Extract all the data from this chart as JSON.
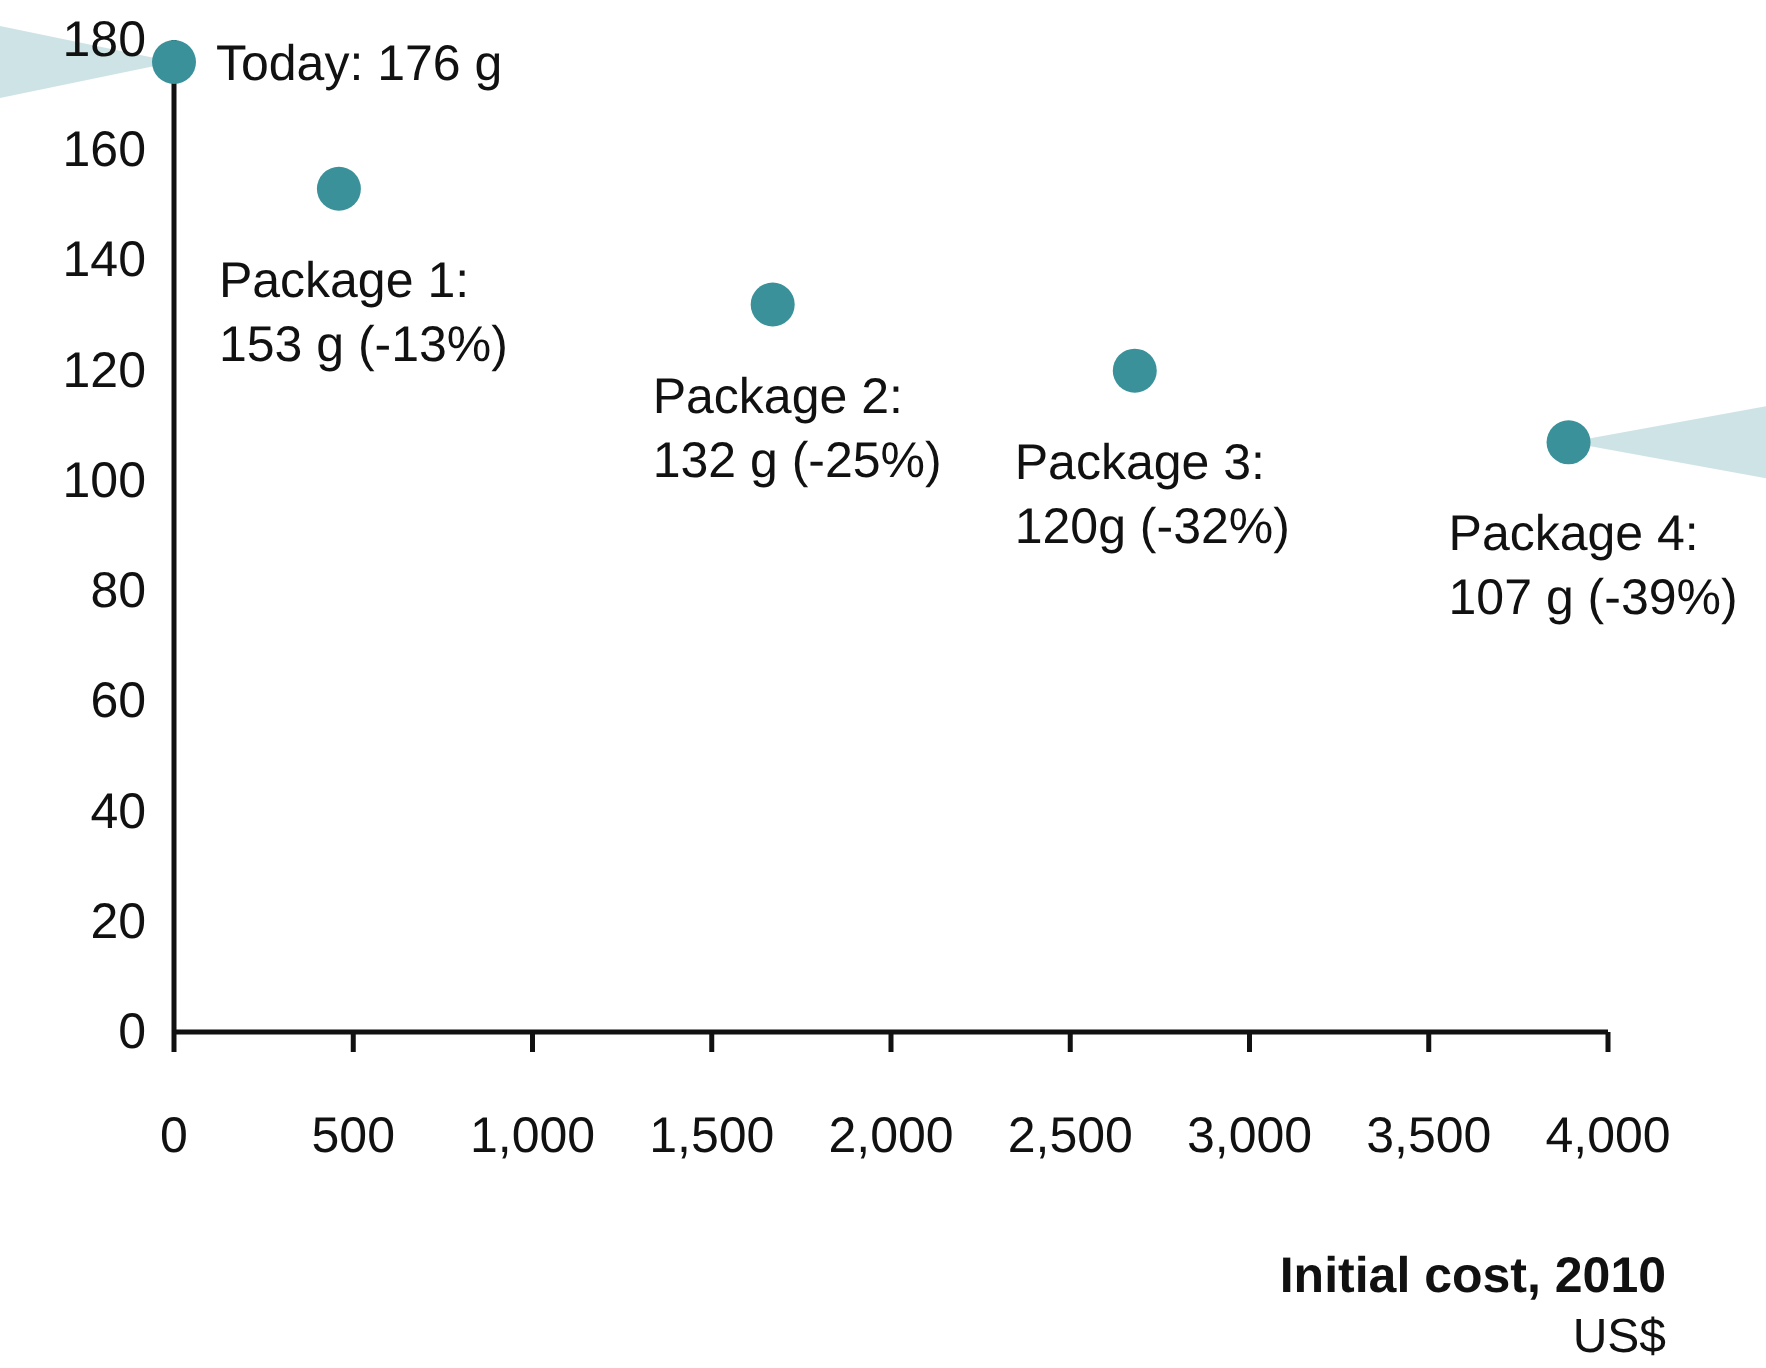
{
  "chart_data": {
    "type": "scatter",
    "xlabel": "Initial cost, 2010",
    "x": [
      0,
      460,
      1670,
      2680,
      3890
    ],
    "series": [
      {
        "color": "#3a9199",
        "values": [
          176,
          153,
          132,
          120,
          107
        ]
      }
    ],
    "xlim": [
      0,
      4000
    ],
    "xticks": [
      0,
      500,
      {
        "value": 1000,
        "label": "1,000"
      },
      {
        "value": 1500,
        "label": "1,500"
      },
      {
        "value": 2000,
        "label": "2,000"
      },
      {
        "value": 2500,
        "label": "2,500"
      },
      {
        "value": 3000,
        "label": "3,000"
      },
      {
        "value": 3500,
        "label": "3,500"
      },
      {
        "value": 4000,
        "label": "4,000"
      }
    ],
    "ylim": [
      0,
      180
    ],
    "yticks": [
      0,
      20,
      40,
      60,
      80,
      100,
      120,
      140,
      160,
      180
    ],
    "grid": false,
    "marker": "circle",
    "annotations": [
      {
        "text": "Today: 176 g",
        "x": 0,
        "y": 176
      },
      {
        "text": "Package 1:\n153 g (-13%)",
        "x": 460,
        "y": 153
      },
      {
        "text": "Package 2:\n132 g (-25%)",
        "x": 1670,
        "y": 132
      },
      {
        "text": "Package 3:\n120g (-32%)",
        "x": 2680,
        "y": 120
      },
      {
        "text": "Package 4:\n107 g (-39%)",
        "x": 3890,
        "y": 107
      },
      "US$"
    ]
  }
}
